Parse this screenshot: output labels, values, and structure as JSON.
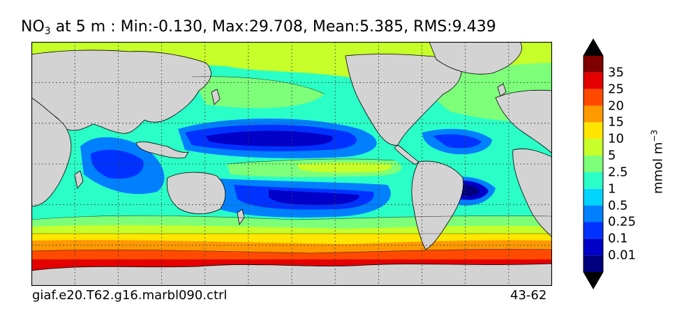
{
  "title": {
    "variable": "NO",
    "variable_sub": "3",
    "rest": " at 5 m : Min:-0.130, Max:29.708, Mean:5.385, RMS:9.439"
  },
  "footer": {
    "run": "giaf.e20.T62.g16.marbl090.ctrl",
    "years": "43-62"
  },
  "colorbar": {
    "units_main": "mmol m",
    "units_sup": "−3",
    "levels": [
      "0.01",
      "0.1",
      "0.25",
      "0.5",
      "1",
      "2.5",
      "5",
      "10",
      "15",
      "20",
      "25",
      "35"
    ],
    "colors": [
      "#00007f",
      "#0000c8",
      "#0032ff",
      "#0080ff",
      "#00d4ff",
      "#29ffc6",
      "#7dff7a",
      "#c6ff29",
      "#ffe600",
      "#ff9900",
      "#ff4a00",
      "#e40000",
      "#7f0000"
    ]
  },
  "map": {
    "land_color": "#d3d3d3",
    "graticule": "dotted"
  }
}
